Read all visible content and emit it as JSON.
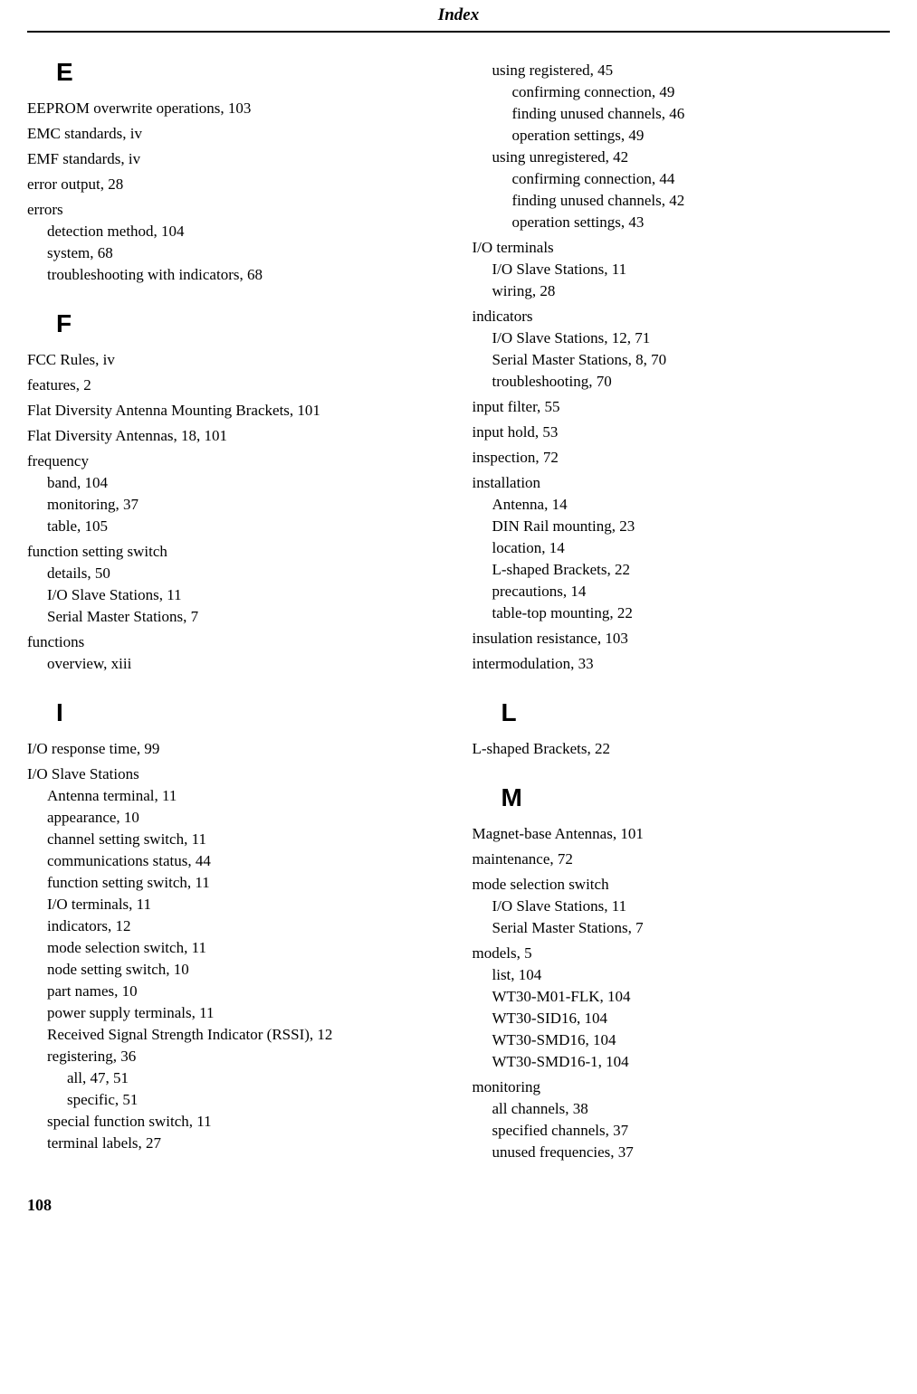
{
  "header": "Index",
  "pageNumber": "108",
  "left": [
    {
      "type": "letter",
      "text": "E"
    },
    {
      "type": "entry",
      "level": 0,
      "text": "EEPROM overwrite operations, 103"
    },
    {
      "type": "entry",
      "level": 0,
      "text": "EMC standards, iv"
    },
    {
      "type": "entry",
      "level": 0,
      "text": "EMF standards, iv"
    },
    {
      "type": "entry",
      "level": 0,
      "text": "error output, 28"
    },
    {
      "type": "entry",
      "level": 0,
      "text": "errors"
    },
    {
      "type": "entry",
      "level": 1,
      "text": "detection method, 104"
    },
    {
      "type": "entry",
      "level": 1,
      "text": "system, 68"
    },
    {
      "type": "entry",
      "level": 1,
      "text": "troubleshooting with indicators, 68"
    },
    {
      "type": "letter",
      "text": "F"
    },
    {
      "type": "entry",
      "level": 0,
      "text": "FCC Rules, iv"
    },
    {
      "type": "entry",
      "level": 0,
      "text": "features, 2"
    },
    {
      "type": "entry",
      "level": 0,
      "text": "Flat Diversity Antenna Mounting Brackets, 101"
    },
    {
      "type": "entry",
      "level": 0,
      "text": "Flat Diversity Antennas, 18, 101"
    },
    {
      "type": "entry",
      "level": 0,
      "text": "frequency"
    },
    {
      "type": "entry",
      "level": 1,
      "text": "band, 104"
    },
    {
      "type": "entry",
      "level": 1,
      "text": "monitoring, 37"
    },
    {
      "type": "entry",
      "level": 1,
      "text": "table, 105"
    },
    {
      "type": "entry",
      "level": 0,
      "text": "function setting switch"
    },
    {
      "type": "entry",
      "level": 1,
      "text": "details, 50"
    },
    {
      "type": "entry",
      "level": 1,
      "text": "I/O Slave Stations, 11"
    },
    {
      "type": "entry",
      "level": 1,
      "text": "Serial Master Stations, 7"
    },
    {
      "type": "entry",
      "level": 0,
      "text": "functions"
    },
    {
      "type": "entry",
      "level": 1,
      "text": "overview, xiii"
    },
    {
      "type": "letter",
      "text": "I"
    },
    {
      "type": "entry",
      "level": 0,
      "text": "I/O response time, 99"
    },
    {
      "type": "entry",
      "level": 0,
      "text": "I/O Slave Stations"
    },
    {
      "type": "entry",
      "level": 1,
      "text": "Antenna terminal, 11"
    },
    {
      "type": "entry",
      "level": 1,
      "text": "appearance, 10"
    },
    {
      "type": "entry",
      "level": 1,
      "text": "channel setting switch, 11"
    },
    {
      "type": "entry",
      "level": 1,
      "text": "communications status, 44"
    },
    {
      "type": "entry",
      "level": 1,
      "text": "function setting switch, 11"
    },
    {
      "type": "entry",
      "level": 1,
      "text": "I/O terminals, 11"
    },
    {
      "type": "entry",
      "level": 1,
      "text": "indicators, 12"
    },
    {
      "type": "entry",
      "level": 1,
      "text": "mode selection switch, 11"
    },
    {
      "type": "entry",
      "level": 1,
      "text": "node setting switch, 10"
    },
    {
      "type": "entry",
      "level": 1,
      "text": "part names, 10"
    },
    {
      "type": "entry",
      "level": 1,
      "text": "power supply terminals, 11"
    },
    {
      "type": "entry",
      "level": 1,
      "text": "Received Signal Strength Indicator (RSSI), 12"
    },
    {
      "type": "entry",
      "level": 1,
      "text": "registering, 36"
    },
    {
      "type": "entry",
      "level": 2,
      "text": "all, 47, 51"
    },
    {
      "type": "entry",
      "level": 2,
      "text": "specific, 51"
    },
    {
      "type": "entry",
      "level": 1,
      "text": "special function switch, 11"
    },
    {
      "type": "entry",
      "level": 1,
      "text": "terminal labels, 27"
    }
  ],
  "right": [
    {
      "type": "entry",
      "level": 1,
      "text": "using registered, 45"
    },
    {
      "type": "entry",
      "level": 2,
      "text": "confirming connection, 49"
    },
    {
      "type": "entry",
      "level": 2,
      "text": "finding unused channels, 46"
    },
    {
      "type": "entry",
      "level": 2,
      "text": "operation settings, 49"
    },
    {
      "type": "entry",
      "level": 1,
      "text": "using unregistered, 42"
    },
    {
      "type": "entry",
      "level": 2,
      "text": "confirming connection, 44"
    },
    {
      "type": "entry",
      "level": 2,
      "text": "finding unused channels, 42"
    },
    {
      "type": "entry",
      "level": 2,
      "text": "operation settings, 43"
    },
    {
      "type": "entry",
      "level": 0,
      "text": "I/O terminals"
    },
    {
      "type": "entry",
      "level": 1,
      "text": "I/O Slave Stations, 11"
    },
    {
      "type": "entry",
      "level": 1,
      "text": "wiring, 28"
    },
    {
      "type": "entry",
      "level": 0,
      "text": "indicators"
    },
    {
      "type": "entry",
      "level": 1,
      "text": "I/O Slave Stations, 12, 71"
    },
    {
      "type": "entry",
      "level": 1,
      "text": "Serial Master Stations, 8, 70"
    },
    {
      "type": "entry",
      "level": 1,
      "text": "troubleshooting, 70"
    },
    {
      "type": "entry",
      "level": 0,
      "text": "input filter, 55"
    },
    {
      "type": "entry",
      "level": 0,
      "text": "input hold, 53"
    },
    {
      "type": "entry",
      "level": 0,
      "text": "inspection, 72"
    },
    {
      "type": "entry",
      "level": 0,
      "text": "installation"
    },
    {
      "type": "entry",
      "level": 1,
      "text": "Antenna, 14"
    },
    {
      "type": "entry",
      "level": 1,
      "text": "DIN Rail mounting, 23"
    },
    {
      "type": "entry",
      "level": 1,
      "text": "location, 14"
    },
    {
      "type": "entry",
      "level": 1,
      "text": "L-shaped Brackets, 22"
    },
    {
      "type": "entry",
      "level": 1,
      "text": "precautions, 14"
    },
    {
      "type": "entry",
      "level": 1,
      "text": "table-top mounting, 22"
    },
    {
      "type": "entry",
      "level": 0,
      "text": "insulation resistance, 103"
    },
    {
      "type": "entry",
      "level": 0,
      "text": "intermodulation, 33"
    },
    {
      "type": "letter",
      "text": "L"
    },
    {
      "type": "entry",
      "level": 0,
      "text": "L-shaped Brackets, 22"
    },
    {
      "type": "letter",
      "text": "M"
    },
    {
      "type": "entry",
      "level": 0,
      "text": "Magnet-base Antennas, 101"
    },
    {
      "type": "entry",
      "level": 0,
      "text": "maintenance, 72"
    },
    {
      "type": "entry",
      "level": 0,
      "text": "mode selection switch"
    },
    {
      "type": "entry",
      "level": 1,
      "text": "I/O Slave Stations, 11"
    },
    {
      "type": "entry",
      "level": 1,
      "text": "Serial Master Stations, 7"
    },
    {
      "type": "entry",
      "level": 0,
      "text": "models, 5"
    },
    {
      "type": "entry",
      "level": 1,
      "text": "list, 104"
    },
    {
      "type": "entry",
      "level": 1,
      "text": "WT30-M01-FLK, 104"
    },
    {
      "type": "entry",
      "level": 1,
      "text": "WT30-SID16, 104"
    },
    {
      "type": "entry",
      "level": 1,
      "text": "WT30-SMD16, 104"
    },
    {
      "type": "entry",
      "level": 1,
      "text": "WT30-SMD16-1, 104"
    },
    {
      "type": "entry",
      "level": 0,
      "text": "monitoring"
    },
    {
      "type": "entry",
      "level": 1,
      "text": "all channels, 38"
    },
    {
      "type": "entry",
      "level": 1,
      "text": "specified channels, 37"
    },
    {
      "type": "entry",
      "level": 1,
      "text": "unused frequencies, 37"
    }
  ]
}
